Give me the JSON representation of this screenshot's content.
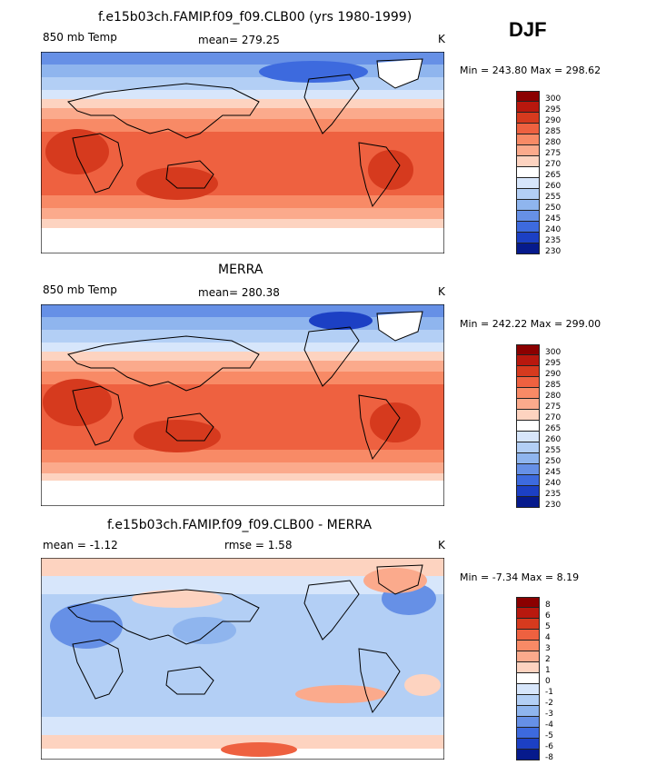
{
  "season": "DJF",
  "panels": [
    {
      "id": "model",
      "title": "f.e15b03ch.FAMIP.f09_f09.CLB00 (yrs 1980-1999)",
      "field": "850 mb Temp",
      "stat_text": "mean= 279.25",
      "units": "K",
      "minmax": "Min = 243.80 Max = 298.62",
      "levels": [
        "300",
        "295",
        "290",
        "285",
        "280",
        "275",
        "270",
        "265",
        "260",
        "255",
        "250",
        "245",
        "240",
        "235",
        "230"
      ],
      "colors": [
        "#8b0000",
        "#b8180e",
        "#d63a1e",
        "#ee6140",
        "#f88a66",
        "#fbaa8c",
        "#fdd3c0",
        "#ffffff",
        "#d7e6fb",
        "#b3cff5",
        "#8fb5ee",
        "#6690e6",
        "#3d6ade",
        "#1c40c4",
        "#061a8c"
      ]
    },
    {
      "id": "obs",
      "title": "MERRA",
      "field": "850 mb Temp",
      "stat_text": "mean= 280.38",
      "units": "K",
      "minmax": "Min = 242.22 Max = 299.00",
      "levels": [
        "300",
        "295",
        "290",
        "285",
        "280",
        "275",
        "270",
        "265",
        "260",
        "255",
        "250",
        "245",
        "240",
        "235",
        "230"
      ],
      "colors": [
        "#8b0000",
        "#b8180e",
        "#d63a1e",
        "#ee6140",
        "#f88a66",
        "#fbaa8c",
        "#fdd3c0",
        "#ffffff",
        "#d7e6fb",
        "#b3cff5",
        "#8fb5ee",
        "#6690e6",
        "#3d6ade",
        "#1c40c4",
        "#061a8c"
      ]
    },
    {
      "id": "diff",
      "title": "f.e15b03ch.FAMIP.f09_f09.CLB00 - MERRA",
      "field": "mean =   -1.12",
      "stat_text": "rmse =    1.58",
      "units": "K",
      "minmax": "Min =   -7.34 Max =    8.19",
      "levels": [
        "8",
        "6",
        "5",
        "4",
        "3",
        "2",
        "1",
        "0",
        "-1",
        "-2",
        "-3",
        "-4",
        "-5",
        "-6",
        "-8"
      ],
      "colors": [
        "#8b0000",
        "#b8180e",
        "#d63a1e",
        "#ee6140",
        "#f88a66",
        "#fbaa8c",
        "#fdd3c0",
        "#ffffff",
        "#d7e6fb",
        "#b3cff5",
        "#8fb5ee",
        "#6690e6",
        "#3d6ade",
        "#1c40c4",
        "#061a8c"
      ]
    }
  ]
}
